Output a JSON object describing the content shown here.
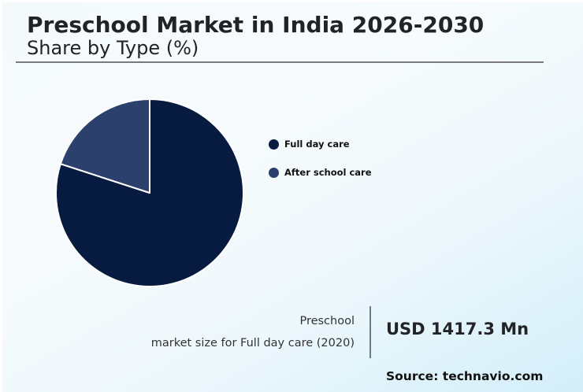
{
  "header": {
    "title": "Preschool Market in India 2026-2030",
    "subtitle": "Share by Type (%)"
  },
  "colors": {
    "full_day_care": "#071b41",
    "after_school_care": "#2c406e",
    "slice_border": "#ffffff"
  },
  "legend": [
    {
      "label": "Full day care",
      "color": "#071b41"
    },
    {
      "label": "After school care",
      "color": "#2c406e"
    }
  ],
  "kpi": {
    "label_line1": "Preschool",
    "label_line2": "market size for Full day care (2020)",
    "value": "USD 1417.3 Mn"
  },
  "source": "Source: technavio.com",
  "chart_data": {
    "type": "pie",
    "title": "Preschool Market in India 2026-2030",
    "subtitle": "Share by Type (%)",
    "categories": [
      "Full day care",
      "After school care"
    ],
    "values": [
      80,
      20
    ],
    "colors": [
      "#071b41",
      "#2c406e"
    ],
    "start_angle": "12 o'clock, clockwise",
    "legend_position": "right",
    "data_labels": false,
    "annotation": {
      "label": "Preschool market size for Full day care (2020)",
      "value": "USD 1417.3 Mn"
    },
    "source": "technavio.com"
  }
}
